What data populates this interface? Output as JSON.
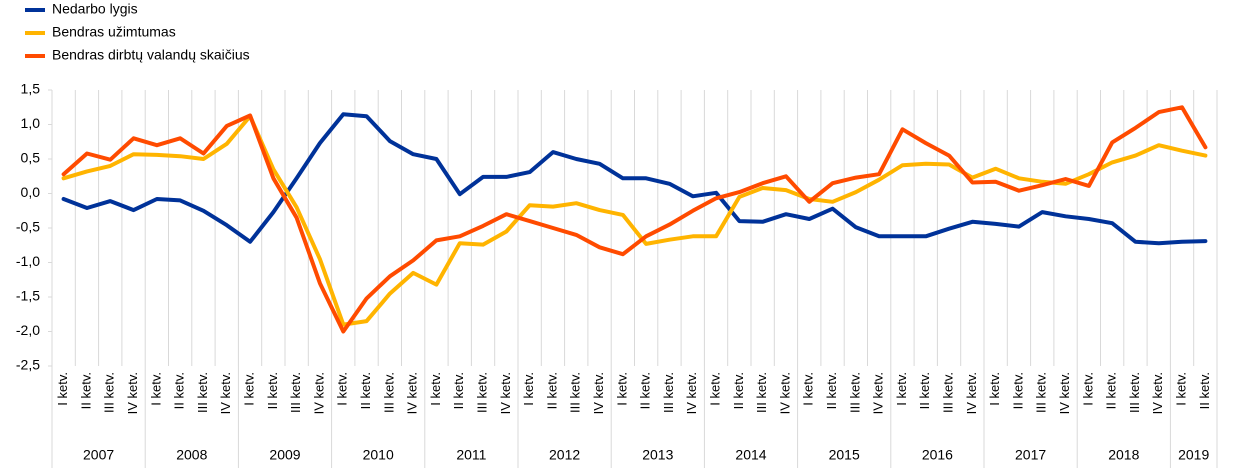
{
  "chart_data": {
    "type": "line",
    "categories": [
      "I ketv.",
      "II ketv.",
      "III ketv.",
      "IV ketv.",
      "I ketv.",
      "II ketv.",
      "III ketv.",
      "IV ketv.",
      "I ketv.",
      "II ketv.",
      "III ketv.",
      "IV ketv.",
      "I ketv.",
      "II ketv.",
      "III ketv.",
      "IV ketv.",
      "I ketv.",
      "II ketv.",
      "III ketv.",
      "IV ketv.",
      "I ketv.",
      "II ketv.",
      "III ketv.",
      "IV ketv.",
      "I ketv.",
      "II ketv.",
      "III ketv.",
      "IV ketv.",
      "I ketv.",
      "II ketv.",
      "III ketv.",
      "IV ketv.",
      "I ketv.",
      "II ketv.",
      "III ketv.",
      "IV ketv.",
      "I ketv.",
      "II ketv.",
      "III ketv.",
      "IV ketv.",
      "I ketv.",
      "II ketv.",
      "III ketv.",
      "IV ketv.",
      "I ketv.",
      "II ketv.",
      "III ketv.",
      "IV ketv.",
      "I ketv.",
      "II ketv."
    ],
    "years": [
      "2007",
      "2008",
      "2009",
      "2010",
      "2011",
      "2012",
      "2013",
      "2014",
      "2015",
      "2016",
      "2017",
      "2018",
      "2019"
    ],
    "series": [
      {
        "name": "Nedarbo lygis",
        "color": "#003299",
        "values": [
          -0.08,
          -0.21,
          -0.11,
          -0.24,
          -0.08,
          -0.1,
          -0.25,
          -0.46,
          -0.7,
          -0.27,
          0.22,
          0.73,
          1.15,
          1.12,
          0.76,
          0.57,
          0.5,
          -0.01,
          0.24,
          0.24,
          0.31,
          0.6,
          0.5,
          0.43,
          0.22,
          0.22,
          0.14,
          -0.04,
          0.01,
          -0.4,
          -0.41,
          -0.3,
          -0.37,
          -0.22,
          -0.49,
          -0.62,
          -0.62,
          -0.62,
          -0.51,
          -0.41,
          -0.44,
          -0.48,
          -0.27,
          -0.33,
          -0.37,
          -0.43,
          -0.7,
          -0.72,
          -0.7,
          -0.69
        ]
      },
      {
        "name": "Bendras užimtumas",
        "color": "#ffb400",
        "values": [
          0.22,
          0.32,
          0.4,
          0.57,
          0.56,
          0.54,
          0.5,
          0.72,
          1.12,
          0.35,
          -0.2,
          -0.95,
          -1.9,
          -1.85,
          -1.45,
          -1.15,
          -1.32,
          -0.72,
          -0.74,
          -0.55,
          -0.17,
          -0.19,
          -0.14,
          -0.24,
          -0.31,
          -0.73,
          -0.67,
          -0.62,
          -0.62,
          -0.05,
          0.08,
          0.05,
          -0.08,
          -0.12,
          0.02,
          0.2,
          0.41,
          0.43,
          0.42,
          0.23,
          0.36,
          0.22,
          0.17,
          0.14,
          0.28,
          0.45,
          0.55,
          0.7,
          0.62,
          0.55
        ]
      },
      {
        "name": "Bendras dirbtų valandų skaičius",
        "color": "#ff4b00",
        "values": [
          0.28,
          0.58,
          0.49,
          0.8,
          0.7,
          0.8,
          0.58,
          0.98,
          1.13,
          0.22,
          -0.35,
          -1.3,
          -2.0,
          -1.52,
          -1.2,
          -0.97,
          -0.68,
          -0.62,
          -0.47,
          -0.3,
          -0.4,
          -0.5,
          -0.6,
          -0.78,
          -0.88,
          -0.62,
          -0.45,
          -0.25,
          -0.07,
          0.02,
          0.15,
          0.25,
          -0.12,
          0.15,
          0.23,
          0.28,
          0.93,
          0.73,
          0.55,
          0.16,
          0.17,
          0.04,
          0.12,
          0.21,
          0.11,
          0.74,
          0.95,
          1.18,
          1.25,
          0.67
        ]
      }
    ],
    "ylim": [
      -2.5,
      1.5
    ],
    "yticks": [
      {
        "value": 1.5,
        "label": "1,5"
      },
      {
        "value": 1.0,
        "label": "1,0"
      },
      {
        "value": 0.5,
        "label": "0,5"
      },
      {
        "value": 0,
        "label": "0,0"
      },
      {
        "value": -0.5,
        "label": "-0,5"
      },
      {
        "value": -1.0,
        "label": "-1,0"
      },
      {
        "value": -1.5,
        "label": "-1,5"
      },
      {
        "value": -2.0,
        "label": "-2,0"
      },
      {
        "value": -2.5,
        "label": "-2,5"
      }
    ],
    "grid": true,
    "legend": "top-left"
  }
}
